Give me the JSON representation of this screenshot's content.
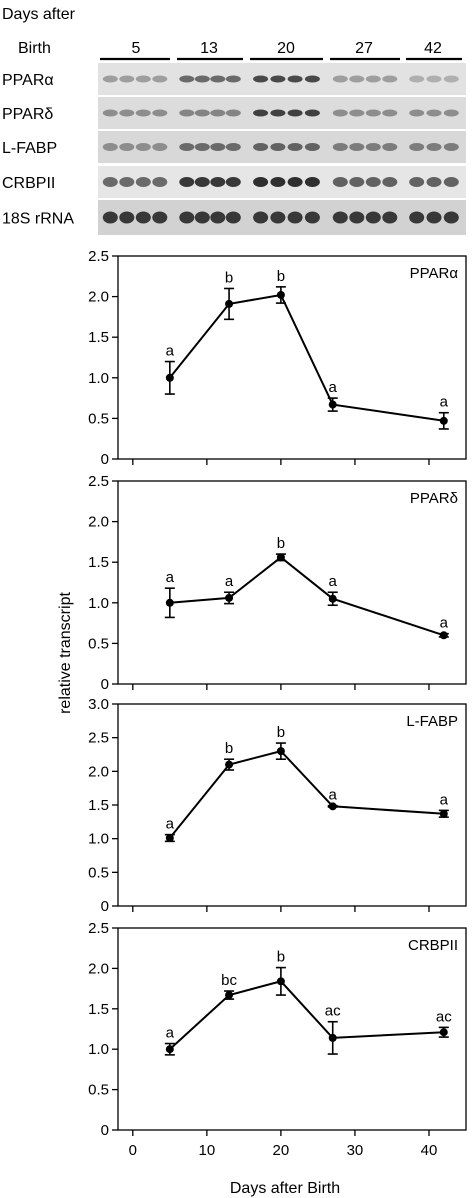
{
  "blot": {
    "header_line1": "Days after",
    "header_line2": "Birth",
    "groups": [
      "5",
      "13",
      "20",
      "27",
      "42"
    ],
    "lanes_per_group": [
      4,
      4,
      4,
      4,
      3
    ],
    "rows": [
      "PPARα",
      "PPARδ",
      "L-FABP",
      "CRBPII",
      "18S rRNA"
    ]
  },
  "shared_ylabel": "relative transcript",
  "chart_data": [
    {
      "type": "line",
      "title": "PPARα",
      "x": [
        5,
        13,
        20,
        27,
        42
      ],
      "y": [
        1.0,
        1.91,
        2.02,
        0.67,
        0.47
      ],
      "err": [
        0.2,
        0.19,
        0.1,
        0.08,
        0.1
      ],
      "sig": [
        "a",
        "b",
        "b",
        "a",
        "a"
      ],
      "ylim": [
        0,
        2.5
      ],
      "yticks": [
        "0",
        "0.5",
        "1.0",
        "1.5",
        "2.0",
        "2.5"
      ]
    },
    {
      "type": "line",
      "title": "PPARδ",
      "x": [
        5,
        13,
        20,
        27,
        42
      ],
      "y": [
        1.0,
        1.06,
        1.56,
        1.05,
        0.6
      ],
      "err": [
        0.18,
        0.07,
        0.04,
        0.08,
        0.02
      ],
      "sig": [
        "a",
        "a",
        "b",
        "a",
        "a"
      ],
      "ylim": [
        0,
        2.5
      ],
      "yticks": [
        "0",
        "0.5",
        "1.0",
        "1.5",
        "2.0",
        "2.5"
      ]
    },
    {
      "type": "line",
      "title": "L-FABP",
      "x": [
        5,
        13,
        20,
        27,
        42
      ],
      "y": [
        1.01,
        2.1,
        2.3,
        1.48,
        1.37
      ],
      "err": [
        0.05,
        0.08,
        0.12,
        0.01,
        0.05
      ],
      "sig": [
        "a",
        "b",
        "b",
        "a",
        "a"
      ],
      "ylim": [
        0,
        3.0
      ],
      "yticks": [
        "0",
        "0.5",
        "1.0",
        "1.5",
        "2.0",
        "2.5",
        "3.0"
      ]
    },
    {
      "type": "line",
      "title": "CRBPII",
      "x": [
        5,
        13,
        20,
        27,
        42
      ],
      "y": [
        1.0,
        1.67,
        1.84,
        1.14,
        1.21
      ],
      "err": [
        0.07,
        0.05,
        0.17,
        0.2,
        0.06
      ],
      "sig": [
        "a",
        "bc",
        "b",
        "ac",
        "ac"
      ],
      "ylim": [
        0,
        2.5
      ],
      "yticks": [
        "0",
        "0.5",
        "1.0",
        "1.5",
        "2.0",
        "2.5"
      ]
    }
  ],
  "x_axis": {
    "xlim": [
      -2,
      45
    ],
    "ticks": [
      0,
      10,
      20,
      30,
      40
    ],
    "tick_labels": [
      "0",
      "10",
      "20",
      "30",
      "40"
    ],
    "label": "Days after Birth"
  }
}
